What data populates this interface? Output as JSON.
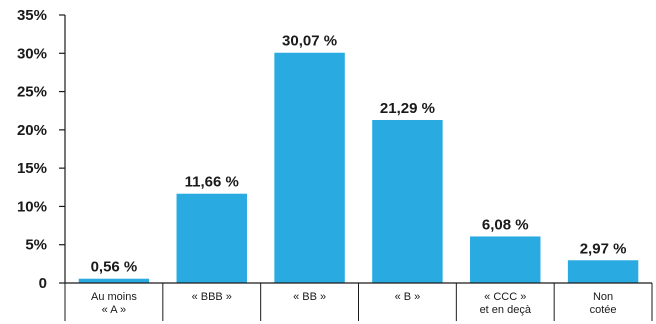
{
  "chart_data": {
    "type": "bar",
    "title": "",
    "xlabel": "",
    "ylabel": "",
    "categories": [
      [
        "Au moins",
        "« A »"
      ],
      [
        "« BBB »"
      ],
      [
        "« BB »"
      ],
      [
        "« B »"
      ],
      [
        "« CCC »",
        "et en deçà"
      ],
      [
        "Non",
        "cotée"
      ]
    ],
    "values": [
      0.56,
      11.66,
      30.07,
      21.29,
      6.08,
      2.97
    ],
    "data_labels": [
      "0,56 %",
      "11,66 %",
      "30,07 %",
      "21,29 %",
      "6,08 %",
      "2,97 %"
    ],
    "y_ticks": [
      {
        "value": 0,
        "label": "0"
      },
      {
        "value": 5,
        "label": "5%"
      },
      {
        "value": 10,
        "label": "10%"
      },
      {
        "value": 15,
        "label": "15%"
      },
      {
        "value": 20,
        "label": "20%"
      },
      {
        "value": 25,
        "label": "25%"
      },
      {
        "value": 30,
        "label": "30%"
      },
      {
        "value": 35,
        "label": "35%"
      }
    ],
    "ylim": [
      0,
      35
    ],
    "grid": false,
    "colors": {
      "bar": "#29abe2",
      "axis": "#1a1a1a",
      "text": "#1a1a1a"
    }
  }
}
